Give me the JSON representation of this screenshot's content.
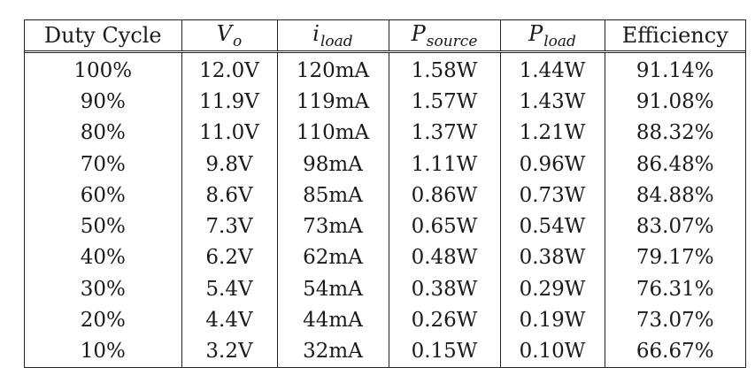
{
  "headers": {
    "duty_cycle": "Duty Cycle",
    "vo_main": "V",
    "vo_sub": "o",
    "iload_main": "i",
    "iload_sub": "load",
    "psource_main": "P",
    "psource_sub": "source",
    "pload_main": "P",
    "pload_sub": "load",
    "efficiency": "Efficiency"
  },
  "rows": [
    {
      "duty": "100%",
      "vo": "12.0V",
      "iload": "120mA",
      "psource": "1.58W",
      "pload": "1.44W",
      "eff": "91.14%"
    },
    {
      "duty": "90%",
      "vo": "11.9V",
      "iload": "119mA",
      "psource": "1.57W",
      "pload": "1.43W",
      "eff": "91.08%"
    },
    {
      "duty": "80%",
      "vo": "11.0V",
      "iload": "110mA",
      "psource": "1.37W",
      "pload": "1.21W",
      "eff": "88.32%"
    },
    {
      "duty": "70%",
      "vo": "9.8V",
      "iload": "98mA",
      "psource": "1.11W",
      "pload": "0.96W",
      "eff": "86.48%"
    },
    {
      "duty": "60%",
      "vo": "8.6V",
      "iload": "85mA",
      "psource": "0.86W",
      "pload": "0.73W",
      "eff": "84.88%"
    },
    {
      "duty": "50%",
      "vo": "7.3V",
      "iload": "73mA",
      "psource": "0.65W",
      "pload": "0.54W",
      "eff": "83.07%"
    },
    {
      "duty": "40%",
      "vo": "6.2V",
      "iload": "62mA",
      "psource": "0.48W",
      "pload": "0.38W",
      "eff": "79.17%"
    },
    {
      "duty": "30%",
      "vo": "5.4V",
      "iload": "54mA",
      "psource": "0.38W",
      "pload": "0.29W",
      "eff": "76.31%"
    },
    {
      "duty": "20%",
      "vo": "4.4V",
      "iload": "44mA",
      "psource": "0.26W",
      "pload": "0.19W",
      "eff": "73.07%"
    },
    {
      "duty": "10%",
      "vo": "3.2V",
      "iload": "32mA",
      "psource": "0.15W",
      "pload": "0.10W",
      "eff": "66.67%"
    }
  ]
}
